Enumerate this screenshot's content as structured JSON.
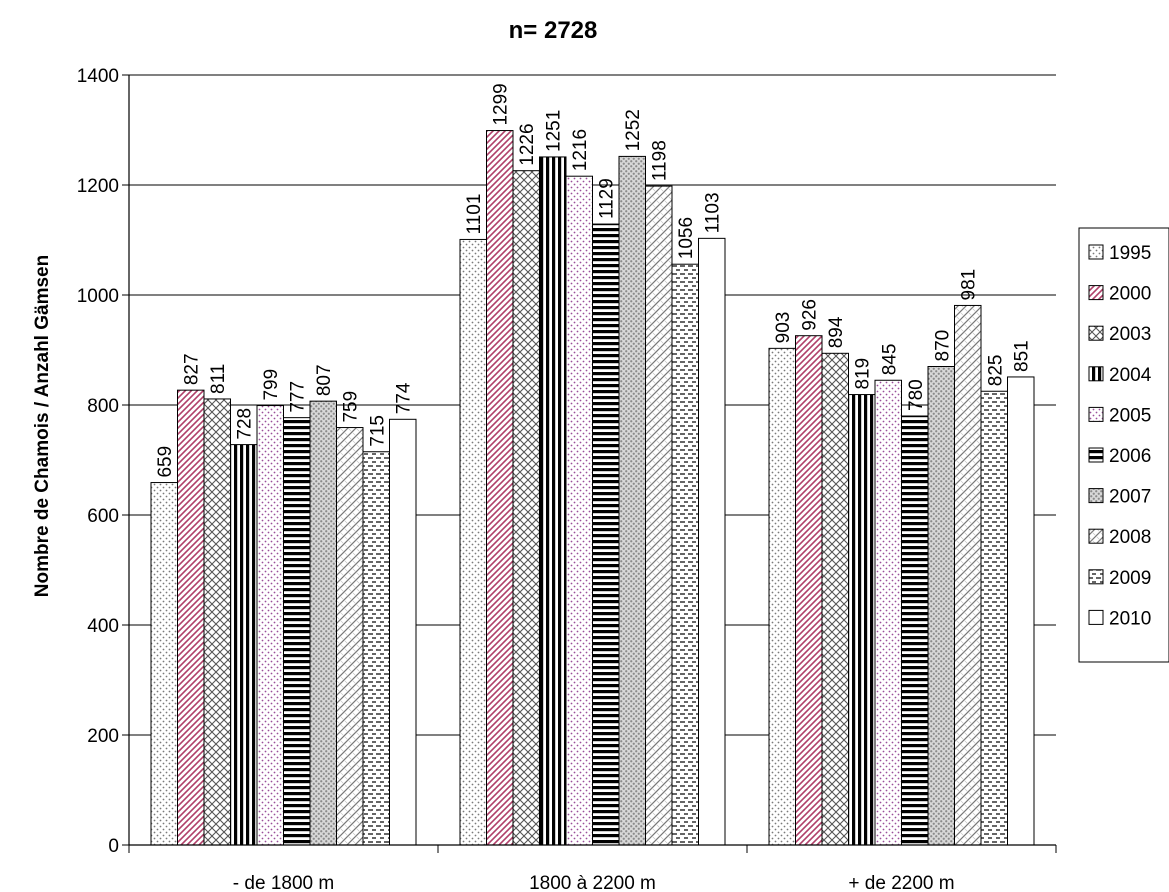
{
  "chart_data": {
    "type": "bar",
    "title": "n= 2728",
    "xlabel": "",
    "ylabel": "Nombre de Chamois / Anzahl Gämsen",
    "ylim": [
      0,
      1400
    ],
    "yticks": [
      0,
      200,
      400,
      600,
      800,
      1000,
      1200,
      1400
    ],
    "grid": true,
    "legend_position": "right",
    "categories": [
      "- de 1800 m",
      "1800 à 2200 m",
      "+ de 2200 m"
    ],
    "series": [
      {
        "name": "1995",
        "values": [
          659,
          1101,
          903
        ],
        "color": "#d9d9d9",
        "pattern": "dots-fine"
      },
      {
        "name": "2000",
        "values": [
          827,
          1299,
          926
        ],
        "color": "#c0507a",
        "pattern": "diag-pink"
      },
      {
        "name": "2003",
        "values": [
          811,
          1226,
          894
        ],
        "color": "#707070",
        "pattern": "crosshatch"
      },
      {
        "name": "2004",
        "values": [
          728,
          1251,
          819
        ],
        "color": "#000000",
        "pattern": "vertical"
      },
      {
        "name": "2005",
        "values": [
          799,
          1216,
          845
        ],
        "color": "#a060a0",
        "pattern": "dots-purple"
      },
      {
        "name": "2006",
        "values": [
          777,
          1129,
          780
        ],
        "color": "#000000",
        "pattern": "horizontal"
      },
      {
        "name": "2007",
        "values": [
          807,
          1252,
          870
        ],
        "color": "#909090",
        "pattern": "dots-grey"
      },
      {
        "name": "2008",
        "values": [
          759,
          1198,
          981
        ],
        "color": "#909090",
        "pattern": "diag-grey"
      },
      {
        "name": "2009",
        "values": [
          715,
          1056,
          825
        ],
        "color": "#000000",
        "pattern": "dashes"
      },
      {
        "name": "2010",
        "values": [
          774,
          1103,
          851
        ],
        "color": "#ffffff",
        "pattern": "none"
      }
    ]
  }
}
